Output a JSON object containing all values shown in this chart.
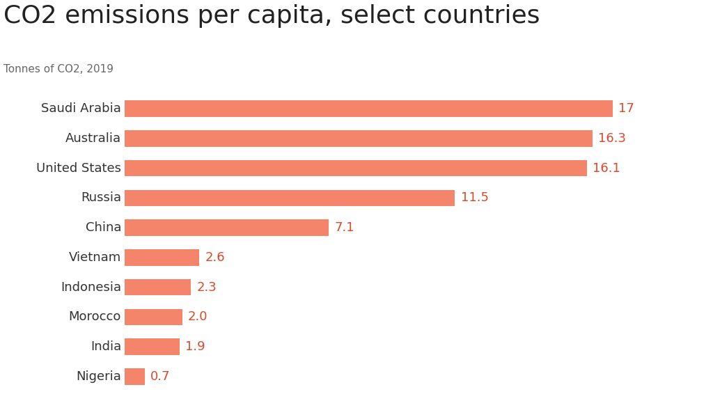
{
  "title": "CO2 emissions per capita, select countries",
  "subtitle": "Tonnes of CO2, 2019",
  "categories": [
    "Saudi Arabia",
    "Australia",
    "United States",
    "Russia",
    "China",
    "Vietnam",
    "Indonesia",
    "Morocco",
    "India",
    "Nigeria"
  ],
  "values": [
    17.0,
    16.3,
    16.1,
    11.5,
    7.1,
    2.6,
    2.3,
    2.0,
    1.9,
    0.7
  ],
  "labels": [
    "17",
    "16.3",
    "16.1",
    "11.5",
    "7.1",
    "2.6",
    "2.3",
    "2.0",
    "1.9",
    "0.7"
  ],
  "bar_color": "#F4846A",
  "label_color": "#D94A2B",
  "title_color": "#222222",
  "subtitle_color": "#666666",
  "category_color": "#333333",
  "background_color": "#ffffff",
  "xlim": [
    0,
    19.5
  ],
  "title_fontsize": 26,
  "subtitle_fontsize": 11,
  "category_fontsize": 13,
  "label_fontsize": 13,
  "bar_height": 0.55
}
